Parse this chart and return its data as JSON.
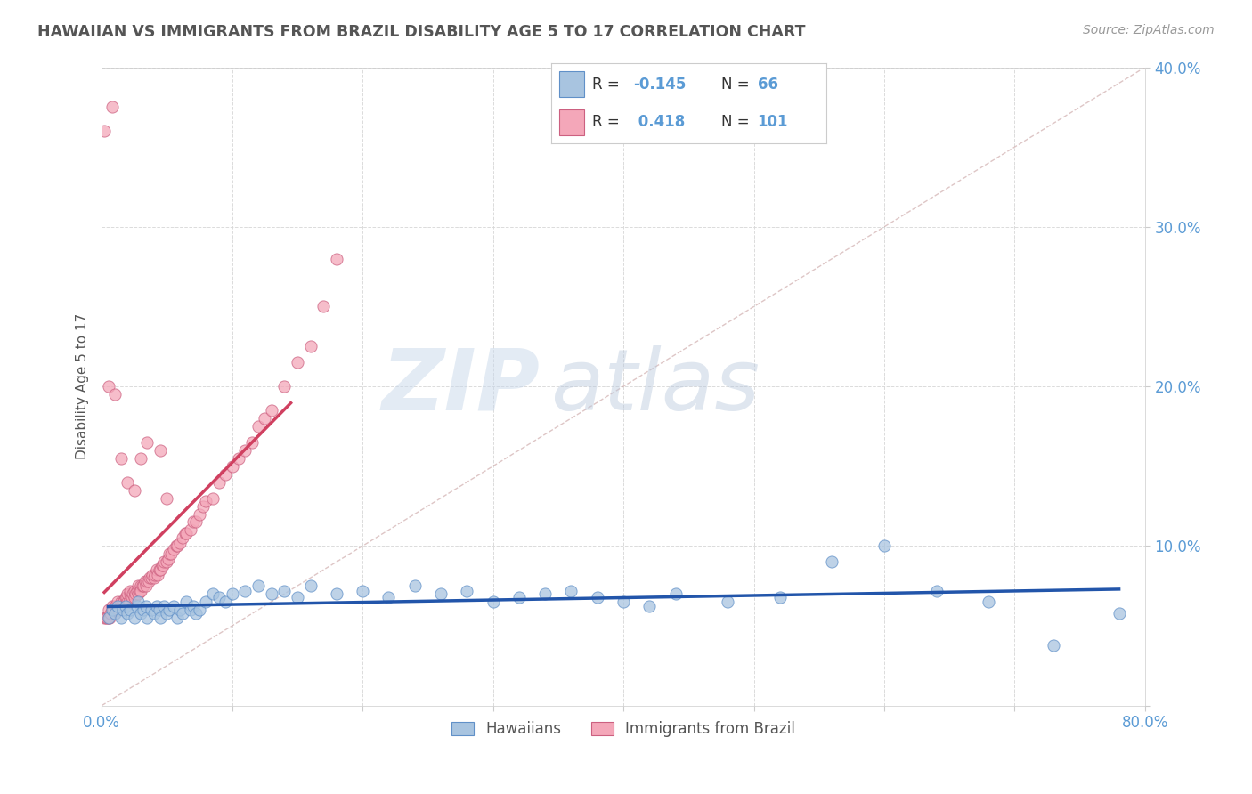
{
  "title": "HAWAIIAN VS IMMIGRANTS FROM BRAZIL DISABILITY AGE 5 TO 17 CORRELATION CHART",
  "source": "Source: ZipAtlas.com",
  "ylabel": "Disability Age 5 to 17",
  "xlim": [
    0,
    0.8
  ],
  "ylim": [
    0,
    0.4
  ],
  "xticks": [
    0.0,
    0.1,
    0.2,
    0.3,
    0.4,
    0.5,
    0.6,
    0.7,
    0.8
  ],
  "yticks": [
    0.0,
    0.1,
    0.2,
    0.3,
    0.4
  ],
  "hawaiians_R": -0.145,
  "hawaiians_N": 66,
  "brazil_R": 0.418,
  "brazil_N": 101,
  "hawaii_color": "#a8c4e0",
  "brazil_color": "#f4a7b9",
  "hawaii_line_color": "#2255aa",
  "brazil_line_color": "#d04060",
  "diagonal_color": "#c8a0a0",
  "background_color": "#ffffff",
  "grid_color": "#d8d8d8",
  "watermark_zip": "ZIP",
  "watermark_atlas": "atlas",
  "hawaii_scatter_x": [
    0.005,
    0.008,
    0.01,
    0.012,
    0.015,
    0.016,
    0.018,
    0.02,
    0.022,
    0.025,
    0.027,
    0.028,
    0.03,
    0.032,
    0.034,
    0.035,
    0.038,
    0.04,
    0.042,
    0.044,
    0.045,
    0.048,
    0.05,
    0.052,
    0.055,
    0.058,
    0.06,
    0.062,
    0.065,
    0.068,
    0.07,
    0.072,
    0.075,
    0.08,
    0.085,
    0.09,
    0.095,
    0.1,
    0.11,
    0.12,
    0.13,
    0.14,
    0.15,
    0.16,
    0.18,
    0.2,
    0.22,
    0.24,
    0.26,
    0.28,
    0.3,
    0.32,
    0.34,
    0.36,
    0.38,
    0.4,
    0.42,
    0.44,
    0.48,
    0.52,
    0.56,
    0.6,
    0.64,
    0.68,
    0.73,
    0.78
  ],
  "hawaii_scatter_y": [
    0.055,
    0.06,
    0.058,
    0.062,
    0.055,
    0.06,
    0.062,
    0.058,
    0.06,
    0.055,
    0.062,
    0.065,
    0.058,
    0.06,
    0.062,
    0.055,
    0.06,
    0.058,
    0.062,
    0.06,
    0.055,
    0.062,
    0.058,
    0.06,
    0.062,
    0.055,
    0.06,
    0.058,
    0.065,
    0.06,
    0.062,
    0.058,
    0.06,
    0.065,
    0.07,
    0.068,
    0.065,
    0.07,
    0.072,
    0.075,
    0.07,
    0.072,
    0.068,
    0.075,
    0.07,
    0.072,
    0.068,
    0.075,
    0.07,
    0.072,
    0.065,
    0.068,
    0.07,
    0.072,
    0.068,
    0.065,
    0.062,
    0.07,
    0.065,
    0.068,
    0.09,
    0.1,
    0.072,
    0.065,
    0.038,
    0.058
  ],
  "brazil_scatter_x": [
    0.002,
    0.003,
    0.004,
    0.005,
    0.005,
    0.006,
    0.007,
    0.008,
    0.008,
    0.009,
    0.01,
    0.01,
    0.011,
    0.012,
    0.012,
    0.013,
    0.014,
    0.015,
    0.015,
    0.016,
    0.017,
    0.018,
    0.018,
    0.019,
    0.02,
    0.02,
    0.021,
    0.022,
    0.022,
    0.023,
    0.024,
    0.025,
    0.025,
    0.026,
    0.027,
    0.028,
    0.028,
    0.029,
    0.03,
    0.03,
    0.031,
    0.032,
    0.033,
    0.034,
    0.035,
    0.036,
    0.037,
    0.038,
    0.039,
    0.04,
    0.041,
    0.042,
    0.043,
    0.044,
    0.045,
    0.046,
    0.047,
    0.048,
    0.05,
    0.051,
    0.052,
    0.053,
    0.055,
    0.057,
    0.058,
    0.06,
    0.062,
    0.064,
    0.065,
    0.068,
    0.07,
    0.072,
    0.075,
    0.078,
    0.08,
    0.085,
    0.09,
    0.095,
    0.1,
    0.105,
    0.11,
    0.115,
    0.12,
    0.125,
    0.13,
    0.14,
    0.15,
    0.16,
    0.17,
    0.18,
    0.005,
    0.01,
    0.015,
    0.02,
    0.025,
    0.03,
    0.002,
    0.008,
    0.035,
    0.045,
    0.05
  ],
  "brazil_scatter_y": [
    0.055,
    0.055,
    0.055,
    0.055,
    0.06,
    0.055,
    0.058,
    0.06,
    0.062,
    0.06,
    0.058,
    0.062,
    0.06,
    0.062,
    0.065,
    0.06,
    0.062,
    0.062,
    0.065,
    0.065,
    0.065,
    0.068,
    0.062,
    0.068,
    0.065,
    0.07,
    0.065,
    0.07,
    0.072,
    0.068,
    0.07,
    0.072,
    0.068,
    0.07,
    0.072,
    0.07,
    0.075,
    0.072,
    0.075,
    0.072,
    0.075,
    0.075,
    0.078,
    0.075,
    0.078,
    0.078,
    0.08,
    0.08,
    0.082,
    0.08,
    0.082,
    0.085,
    0.082,
    0.085,
    0.085,
    0.088,
    0.088,
    0.09,
    0.09,
    0.092,
    0.095,
    0.095,
    0.098,
    0.1,
    0.1,
    0.102,
    0.105,
    0.108,
    0.108,
    0.11,
    0.115,
    0.115,
    0.12,
    0.125,
    0.128,
    0.13,
    0.14,
    0.145,
    0.15,
    0.155,
    0.16,
    0.165,
    0.175,
    0.18,
    0.185,
    0.2,
    0.215,
    0.225,
    0.25,
    0.28,
    0.2,
    0.195,
    0.155,
    0.14,
    0.135,
    0.155,
    0.36,
    0.375,
    0.165,
    0.16,
    0.13
  ]
}
